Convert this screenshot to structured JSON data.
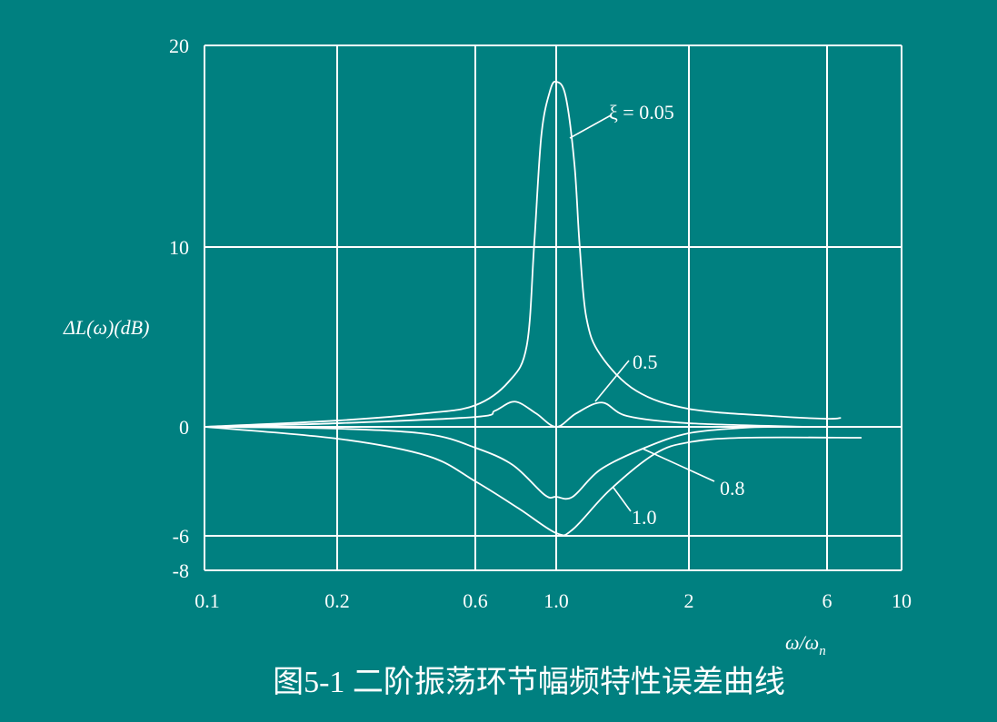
{
  "colors": {
    "background": "#008080",
    "foreground": "#ffffff"
  },
  "caption": "图5-1  二阶振荡环节幅频特性误差曲线",
  "chart_data": {
    "type": "line",
    "title": "图5-1  二阶振荡环节幅频特性误差曲线",
    "xlabel": "ω/ωn",
    "xlabel_main": "ω/ω",
    "xlabel_sub": "n",
    "ylabel": "ΔL(ω)(dB)",
    "x_scale": "log",
    "xlim": [
      0.1,
      10
    ],
    "ylim": [
      -8,
      20
    ],
    "grid": true,
    "x_ticks": [
      {
        "value": 0.1,
        "label": "0.1"
      },
      {
        "value": 0.2,
        "label": "0.2"
      },
      {
        "value": 0.6,
        "label": "0.6"
      },
      {
        "value": 1.0,
        "label": "1.0"
      },
      {
        "value": 2,
        "label": "2"
      },
      {
        "value": 6,
        "label": "6"
      },
      {
        "value": 10,
        "label": "10"
      }
    ],
    "y_ticks": [
      {
        "value": 20,
        "label": "20"
      },
      {
        "value": 10,
        "label": "10"
      },
      {
        "value": 0,
        "label": "0"
      },
      {
        "value": -6,
        "label": "-6"
      },
      {
        "value": -8,
        "label": "-8"
      }
    ],
    "series": [
      {
        "name": "ξ = 0.05",
        "x": [
          0.1,
          0.2,
          0.41,
          0.6,
          0.74,
          0.83,
          0.87,
          0.91,
          0.96,
          1.0,
          1.05,
          1.1,
          1.13,
          1.17,
          1.26,
          1.52,
          2,
          3.9,
          6,
          6.6
        ],
        "y": [
          0,
          0.35,
          0.76,
          1.2,
          2.5,
          4.5,
          10.1,
          15.5,
          17.7,
          18.2,
          17.5,
          14.1,
          10.1,
          6.1,
          4.0,
          2.0,
          1.0,
          0.6,
          0.45,
          0.5
        ]
      },
      {
        "name": "0.5",
        "x": [
          0.1,
          0.2,
          0.6,
          0.68,
          0.77,
          0.88,
          1.0,
          1.11,
          1.27,
          1.45,
          2,
          5.2
        ],
        "y": [
          0,
          0.2,
          0.55,
          0.9,
          1.4,
          0.75,
          0,
          0.75,
          1.35,
          0.6,
          0.2,
          0
        ]
      },
      {
        "name": "0.8",
        "x": [
          0.1,
          0.2,
          0.41,
          0.6,
          0.76,
          0.93,
          1.0,
          1.09,
          1.26,
          1.59,
          2,
          3.1,
          3.9
        ],
        "y": [
          0,
          -0.1,
          -0.4,
          -1.15,
          -2.1,
          -3.75,
          -3.85,
          -3.85,
          -2.35,
          -1.15,
          -0.35,
          -0.05,
          0
        ]
      },
      {
        "name": "1.0",
        "x": [
          0.1,
          0.2,
          0.41,
          0.6,
          0.79,
          1.0,
          1.09,
          1.32,
          1.67,
          2,
          3.1,
          7.6
        ],
        "y": [
          0,
          -0.65,
          -1.6,
          -3.0,
          -4.5,
          -5.85,
          -5.65,
          -3.5,
          -1.5,
          -0.85,
          -0.6,
          -0.6
        ]
      }
    ]
  }
}
